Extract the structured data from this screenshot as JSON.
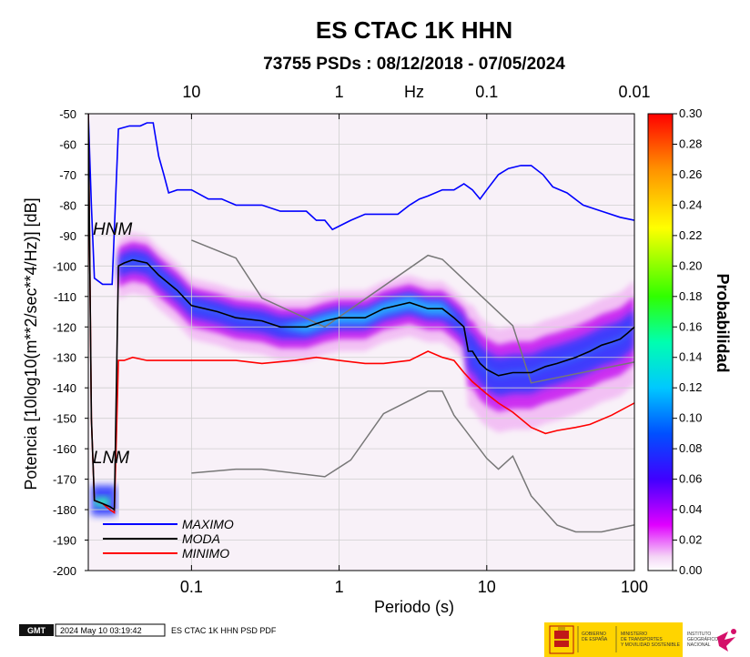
{
  "chart_data": {
    "type": "heatmap",
    "title": "ES CTAC 1K HHN",
    "subtitle": "73755 PSDs : 08/12/2018 - 07/05/2024",
    "xlabel": "Periodo (s)",
    "ylabel": "Potencia [10log10(m**2/sec**4/Hz)] [dB]",
    "x_scale": "log",
    "xlim": [
      0.02,
      100
    ],
    "ylim": [
      -200,
      -50
    ],
    "x_ticks": [
      {
        "v": 0.1,
        "label": "0.1"
      },
      {
        "v": 1,
        "label": "1"
      },
      {
        "v": 10,
        "label": "10"
      },
      {
        "v": 100,
        "label": "100"
      }
    ],
    "y_ticks": [
      -50,
      -60,
      -70,
      -80,
      -90,
      -100,
      -110,
      -120,
      -130,
      -140,
      -150,
      -160,
      -170,
      -180,
      -190,
      -200
    ],
    "top_axis_unit": "Hz",
    "top_ticks": [
      {
        "v": 0.1,
        "label": "10"
      },
      {
        "v": 1,
        "label": "1"
      },
      {
        "v": 10,
        "label": "0.1"
      },
      {
        "v": 100,
        "label": "0.01"
      }
    ],
    "colorbar": {
      "label": "Probabilidad",
      "range": [
        0,
        0.3
      ],
      "ticks": [
        "0.30",
        "0.28",
        "0.26",
        "0.24",
        "0.22",
        "0.20",
        "0.18",
        "0.16",
        "0.14",
        "0.12",
        "0.10",
        "0.08",
        "0.06",
        "0.04",
        "0.02",
        "0.00"
      ]
    },
    "series": [
      {
        "name": "MAXIMO",
        "color": "#0000ff",
        "x": [
          0.02,
          0.021,
          0.022,
          0.025,
          0.029,
          0.032,
          0.038,
          0.045,
          0.05,
          0.055,
          0.06,
          0.065,
          0.07,
          0.08,
          0.1,
          0.13,
          0.16,
          0.2,
          0.25,
          0.3,
          0.4,
          0.5,
          0.6,
          0.7,
          0.8,
          0.9,
          1.2,
          1.5,
          2,
          2.5,
          3,
          3.5,
          4,
          5,
          6,
          7,
          8,
          9,
          10,
          12,
          14,
          17,
          20,
          24,
          28,
          35,
          45,
          60,
          80,
          100
        ],
        "y": [
          -50,
          -80,
          -104,
          -106,
          -106,
          -55,
          -54,
          -54,
          -53,
          -53,
          -64,
          -70,
          -76,
          -75,
          -75,
          -78,
          -78,
          -80,
          -80,
          -80,
          -82,
          -82,
          -82,
          -85,
          -85,
          -88,
          -85,
          -83,
          -83,
          -83,
          -80,
          -78,
          -77,
          -75,
          -75,
          -73,
          -75,
          -78,
          -75,
          -70,
          -68,
          -67,
          -67,
          -70,
          -74,
          -76,
          -80,
          -82,
          -84,
          -85
        ]
      },
      {
        "name": "MODA",
        "color": "#000000",
        "x": [
          0.02,
          0.021,
          0.022,
          0.025,
          0.028,
          0.03,
          0.032,
          0.035,
          0.04,
          0.05,
          0.06,
          0.08,
          0.1,
          0.15,
          0.2,
          0.3,
          0.4,
          0.6,
          0.8,
          1,
          1.5,
          2,
          3,
          4,
          5,
          6,
          7,
          7.5,
          8,
          9,
          10,
          12,
          15,
          20,
          25,
          30,
          40,
          50,
          60,
          70,
          80,
          90,
          100
        ],
        "y": [
          -50,
          -150,
          -177,
          -178,
          -179,
          -180,
          -100,
          -99,
          -98,
          -99,
          -103,
          -108,
          -113,
          -115,
          -117,
          -118,
          -120,
          -120,
          -118,
          -117,
          -117,
          -114,
          -112,
          -114,
          -114,
          -117,
          -120,
          -128,
          -128,
          -132,
          -134,
          -136,
          -135,
          -135,
          -133,
          -132,
          -130,
          -128,
          -126,
          -125,
          -124,
          -122,
          -120
        ]
      },
      {
        "name": "MINIMO",
        "color": "#ff0000",
        "x": [
          0.02,
          0.021,
          0.022,
          0.025,
          0.028,
          0.03,
          0.032,
          0.035,
          0.04,
          0.05,
          0.06,
          0.08,
          0.1,
          0.2,
          0.3,
          0.5,
          0.7,
          1,
          1.5,
          2,
          3,
          4,
          5,
          6,
          7,
          8,
          10,
          12,
          15,
          20,
          25,
          30,
          40,
          50,
          70,
          100
        ],
        "y": [
          -50,
          -150,
          -177,
          -178,
          -180,
          -181,
          -131,
          -131,
          -130,
          -131,
          -131,
          -131,
          -131,
          -131,
          -132,
          -131,
          -130,
          -131,
          -132,
          -132,
          -131,
          -128,
          -130,
          -131,
          -135,
          -138,
          -142,
          -145,
          -148,
          -153,
          -155,
          -154,
          -153,
          -152,
          -149,
          -145
        ]
      },
      {
        "name": "",
        "color": "#777777",
        "x": [
          0.1,
          0.2,
          0.3,
          0.8,
          4,
          5,
          15,
          20,
          100
        ],
        "y": [
          -91.5,
          -97.4,
          -110.5,
          -120,
          -96.5,
          -97.8,
          -119.6,
          -138.4,
          -131.5
        ]
      },
      {
        "name": "",
        "color": "#777777",
        "x": [
          0.1,
          0.2,
          0.3,
          0.8,
          1.2,
          2,
          4,
          5,
          6,
          10,
          12,
          15,
          20,
          30,
          40,
          60,
          100
        ],
        "y": [
          -168,
          -166.7,
          -166.7,
          -169.2,
          -163.7,
          -148.5,
          -141.1,
          -141.1,
          -149,
          -163.2,
          -166.7,
          -162.4,
          -175.5,
          -185.1,
          -187.3,
          -187.3,
          -185
        ]
      }
    ],
    "model_labels": [
      {
        "text": "HNM"
      },
      {
        "text": "LNM"
      }
    ],
    "grid": true,
    "legend": "bottom-left"
  },
  "footer": {
    "logo_text": "GMT",
    "timestamp": "2024 May 10 03:19:42",
    "caption": "ES CTAC 1K HHN PSD PDF"
  },
  "institutions": {
    "gov_line1": "GOBIERNO",
    "gov_line2": "DE ESPAÑA",
    "ministry_line1": "MINISTERIO",
    "ministry_line2": "DE TRANSPORTES",
    "ministry_line3": "Y MOVILIDAD SOSTENIBLE",
    "ign_line1": "INSTITUTO",
    "ign_line2": "GEOGRÁFICO",
    "ign_line3": "NACIONAL"
  },
  "colors": {
    "maximo": "#0000ff",
    "moda": "#000000",
    "minimo": "#ff0000",
    "models": "#777777",
    "gov_yellow": "#ffd400"
  }
}
